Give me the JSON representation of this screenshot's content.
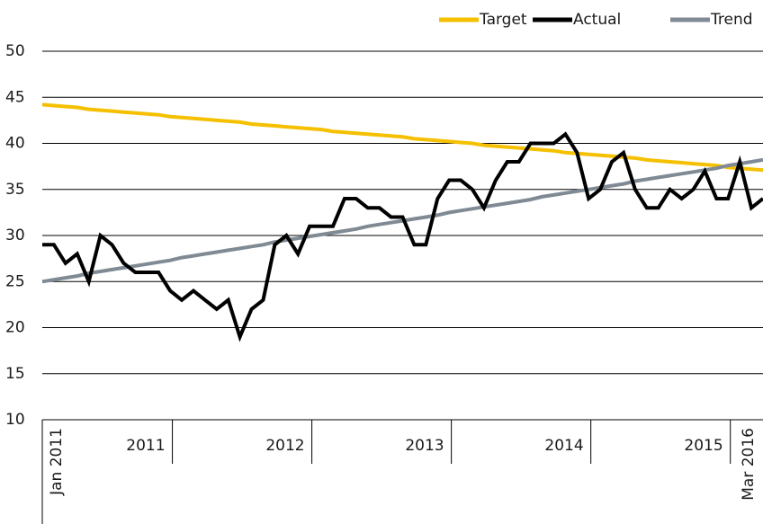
{
  "chart_data": {
    "type": "line",
    "categories": [
      "Jan 2011",
      null,
      null,
      null,
      null,
      null,
      null,
      null,
      null,
      null,
      null,
      null,
      null,
      null,
      null,
      null,
      null,
      null,
      null,
      null,
      null,
      null,
      null,
      null,
      null,
      null,
      null,
      null,
      null,
      null,
      null,
      null,
      null,
      null,
      null,
      null,
      null,
      null,
      null,
      null,
      null,
      null,
      null,
      null,
      null,
      null,
      null,
      null,
      null,
      null,
      null,
      null,
      null,
      null,
      null,
      null,
      null,
      null,
      null,
      null,
      null,
      null,
      "Mar 2016"
    ],
    "year_labels": [
      "2011",
      "2012",
      "2013",
      "2014",
      "2015"
    ],
    "series": [
      {
        "name": "Target",
        "color": "#f5c000",
        "values": [
          44.2,
          44.1,
          44.0,
          43.9,
          43.7,
          43.6,
          43.5,
          43.4,
          43.3,
          43.2,
          43.1,
          42.9,
          42.8,
          42.7,
          42.6,
          42.5,
          42.4,
          42.3,
          42.1,
          42.0,
          41.9,
          41.8,
          41.7,
          41.6,
          41.5,
          41.3,
          41.2,
          41.1,
          41.0,
          40.9,
          40.8,
          40.7,
          40.5,
          40.4,
          40.3,
          40.2,
          40.1,
          40.0,
          39.8,
          39.7,
          39.6,
          39.5,
          39.4,
          39.3,
          39.2,
          39.0,
          38.9,
          38.8,
          38.7,
          38.6,
          38.5,
          38.4,
          38.2,
          38.1,
          38.0,
          37.9,
          37.8,
          37.7,
          37.6,
          37.4,
          37.3,
          37.2,
          37.1
        ]
      },
      {
        "name": "Actual",
        "color": "#000000",
        "values": [
          29,
          29,
          27,
          28,
          25,
          30,
          29,
          27,
          26,
          26,
          26,
          24,
          23,
          24,
          23,
          22,
          23,
          19,
          22,
          23,
          29,
          30,
          28,
          31,
          31,
          31,
          34,
          34,
          33,
          33,
          32,
          32,
          29,
          29,
          34,
          36,
          36,
          35,
          33,
          36,
          38,
          38,
          40,
          40,
          40,
          41,
          39,
          34,
          35,
          38,
          39,
          35,
          33,
          33,
          35,
          34,
          35,
          37,
          34,
          34,
          38,
          33,
          34
        ]
      },
      {
        "name": "Trend",
        "color": "#7f8a94",
        "values": [
          25.0,
          25.2,
          25.4,
          25.6,
          25.9,
          26.1,
          26.3,
          26.5,
          26.7,
          26.9,
          27.1,
          27.3,
          27.6,
          27.8,
          28.0,
          28.2,
          28.4,
          28.6,
          28.8,
          29.0,
          29.3,
          29.5,
          29.7,
          29.9,
          30.1,
          30.3,
          30.5,
          30.7,
          31.0,
          31.2,
          31.4,
          31.6,
          31.8,
          32.0,
          32.2,
          32.5,
          32.7,
          32.9,
          33.1,
          33.3,
          33.5,
          33.7,
          33.9,
          34.2,
          34.4,
          34.6,
          34.8,
          35.0,
          35.2,
          35.4,
          35.6,
          35.9,
          36.1,
          36.3,
          36.5,
          36.7,
          36.9,
          37.1,
          37.3,
          37.6,
          37.8,
          38.0,
          38.2
        ]
      }
    ],
    "ylim": [
      10,
      50
    ],
    "yticks": [
      10,
      15,
      20,
      25,
      30,
      35,
      40,
      45,
      50
    ],
    "grid": true,
    "legend": "top-right"
  }
}
